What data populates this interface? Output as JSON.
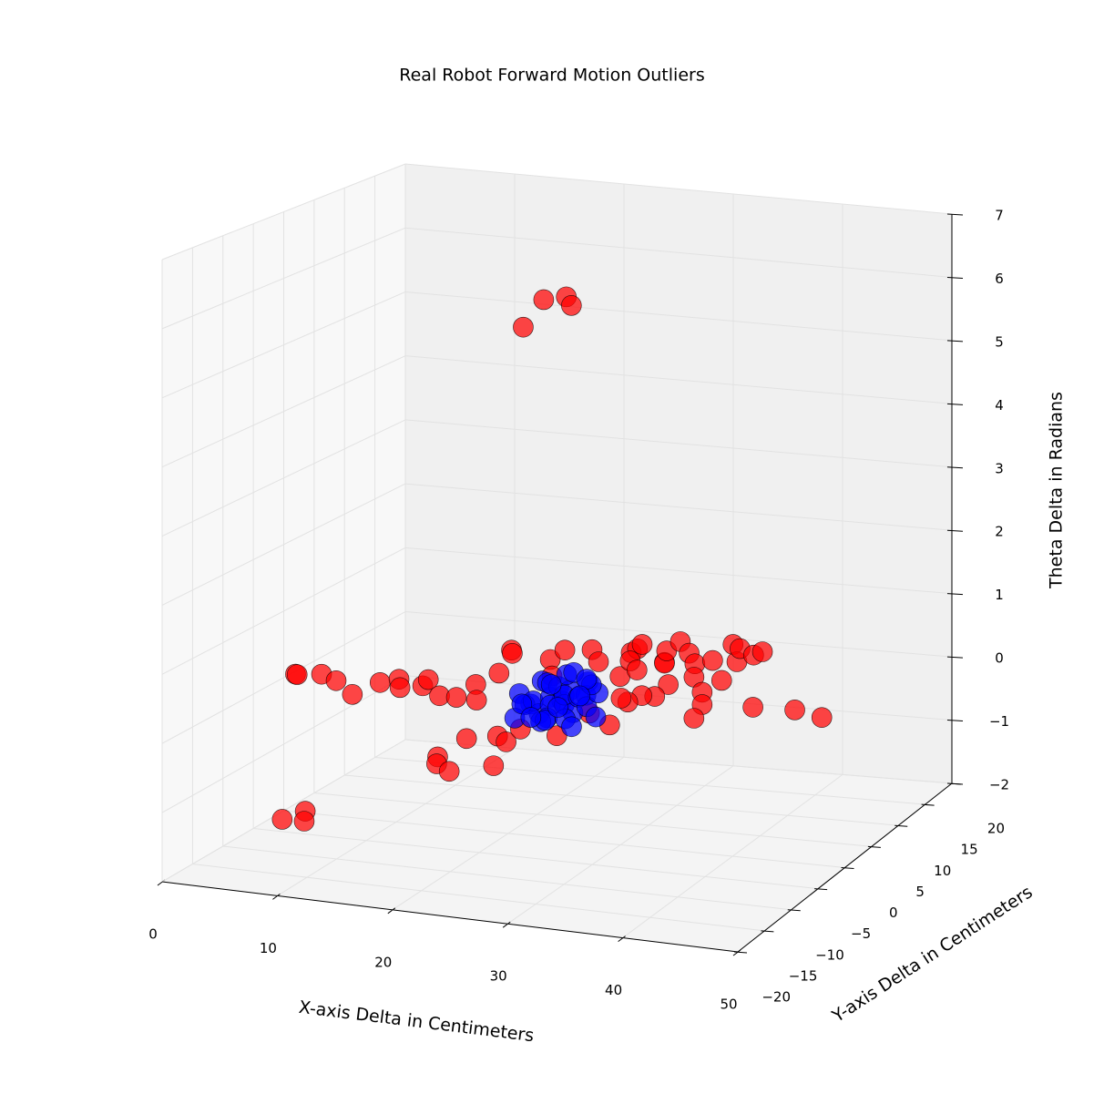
{
  "chart_data": {
    "type": "scatter3d",
    "title": "Real Robot Forward Motion Outliers",
    "xlabel": "X-axis Delta in Centimeters",
    "ylabel": "Y-axis Delta in Centimeters",
    "zlabel": "Theta Delta in Radians",
    "xlim": [
      0,
      50
    ],
    "ylim": [
      -20,
      20
    ],
    "zlim": [
      -2,
      7
    ],
    "xticks": [
      0,
      10,
      20,
      30,
      40,
      50
    ],
    "yticks": [
      {
        "value": -20,
        "label": "−20"
      },
      {
        "value": -15,
        "label": "−15"
      },
      {
        "value": -10,
        "label": "−10"
      },
      {
        "value": -5,
        "label": "−5"
      },
      0,
      5,
      10,
      15,
      20
    ],
    "zticks": [
      {
        "value": -2,
        "label": "−2"
      },
      {
        "value": -1,
        "label": "−1"
      },
      0,
      1,
      2,
      3,
      4,
      5,
      6,
      7
    ],
    "grid": true,
    "series": [
      {
        "color": "#ff0000",
        "x": [
          0.4,
          0.6,
          2.4,
          4.4,
          7.5,
          8,
          9,
          10.2,
          11.7,
          11.3,
          14.3,
          15.8,
          15.6,
          17.7,
          15.9,
          13.4,
          14.2,
          16.1,
          13.3,
          18.8,
          15.4,
          16.8,
          16.3,
          20,
          1,
          1.7,
          2.9,
          24.2,
          20.9,
          22.1,
          24,
          13.8,
          14.3,
          18.1,
          18,
          20.1,
          22.2,
          20.4,
          25.8,
          23.6,
          23.6,
          23.4,
          24.6,
          26.3,
          27.5,
          27.6,
          26.2,
          26.1,
          28.3,
          30.1,
          31.7,
          30.6,
          31.1,
          34.3,
          30.7,
          33.2,
          31.8,
          33.7,
          34,
          31,
          29.9,
          29.6,
          34.2,
          35.7,
          36.7,
          40,
          43.6,
          46.6,
          31,
          28,
          28.6
        ],
        "y": [
          1.2,
          1.1,
          1.8,
          0.5,
          -2.6,
          1.1,
          2.4,
          0.3,
          1.3,
          3,
          -0.8,
          -0.8,
          2.9,
          -1,
          6.3,
          0.6,
          -1.1,
          -2.6,
          5.7,
          -0.2,
          7,
          5.8,
          9.2,
          8.4,
          -2.1,
          0.4,
          -2,
          -5.6,
          4.4,
          6,
          3.2,
          12.4,
          11.6,
          10.9,
          13.6,
          14.3,
          11.4,
          6.8,
          8.2,
          14.4,
          15.5,
          16.7,
          12.3,
          10.2,
          12.7,
          12.5,
          15.6,
          18.2,
          15.5,
          13,
          9.7,
          7.3,
          14.2,
          9.5,
          18.6,
          14.4,
          17.7,
          16.4,
          17.4,
          4.1,
          4,
          2.1,
          6.2,
          3.2,
          -0.3,
          3.7,
          4,
          2.8,
          -3.9,
          -1.5,
          2.9
        ],
        "z": [
          0,
          0,
          0,
          0,
          0,
          0,
          0,
          0,
          0,
          0,
          0,
          0,
          0,
          0,
          0,
          -1,
          -1,
          -1,
          -1,
          -1,
          -1,
          -1,
          -1,
          -1,
          -2,
          -2,
          -2,
          5.8,
          5.8,
          5.8,
          5.8,
          0,
          0,
          0,
          0,
          0,
          0,
          0,
          0,
          0,
          0,
          0,
          0,
          0,
          0,
          0,
          0,
          0,
          0,
          0,
          0,
          0,
          0,
          0,
          0,
          0,
          0,
          0,
          0,
          0,
          0,
          0,
          0,
          0,
          0,
          0,
          0,
          0,
          0,
          0,
          0
        ]
      },
      {
        "color": "#0000ff",
        "x": [
          21,
          21.5,
          22,
          22,
          22.5,
          23,
          23,
          23.5,
          23.5,
          24,
          24,
          24.5,
          24.5,
          25,
          25,
          25.5,
          25.5,
          26,
          26,
          26.5,
          27,
          27,
          22.8,
          23.8,
          24.8,
          25.8,
          26.3,
          21.2,
          22.3,
          24.2,
          25.2,
          26.8,
          20.8,
          23.2,
          25.7,
          27.3
        ],
        "y": [
          0,
          1,
          -1,
          2,
          0.5,
          -1.5,
          1.5,
          0,
          2.5,
          -0.5,
          1,
          -2,
          2,
          0,
          1.5,
          -1,
          2.8,
          0.5,
          -1.8,
          1.2,
          0,
          2,
          0.2,
          -1,
          0.8,
          -0.3,
          2.2,
          -1.2,
          3,
          3.2,
          3.5,
          -0.8,
          0.8,
          -2.3,
          -2.5,
          1
        ],
        "z": [
          0.1,
          -0.1,
          0,
          0.2,
          -0.2,
          0.1,
          0,
          0.3,
          -0.1,
          0,
          0.2,
          -0.1,
          0.1,
          0,
          -0.2,
          0.2,
          0,
          0.1,
          -0.1,
          0.3,
          0,
          0.1,
          -0.3,
          -0.2,
          0.4,
          -0.3,
          0.2,
          -0.2,
          0.1,
          0.3,
          0.2,
          0.2,
          -0.1,
          -0.1,
          0.1,
          -0.2
        ]
      }
    ]
  }
}
